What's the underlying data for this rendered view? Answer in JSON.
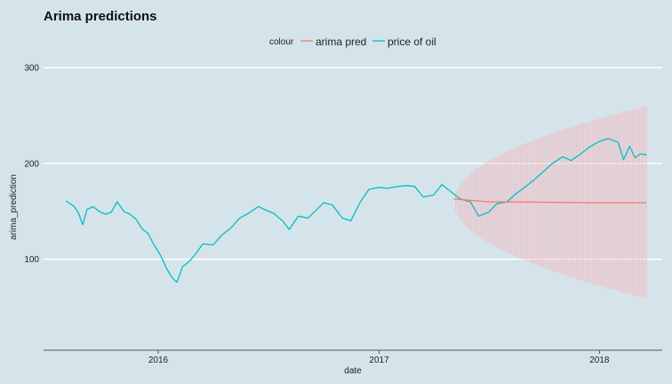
{
  "chart_data": {
    "type": "line",
    "title": "Arima predictions",
    "xlabel": "date",
    "ylabel": "arima_prediction",
    "legend": {
      "title": "colour",
      "position": "top",
      "entries": [
        {
          "label": "arima pred",
          "color": "#f8766d"
        },
        {
          "label": "price of oil",
          "color": "#00bfc4"
        }
      ]
    },
    "x_ticks": [
      "2016",
      "2017",
      "2018"
    ],
    "x_tick_values": [
      "2016-01-01",
      "2017-01-01",
      "2018-01-01"
    ],
    "y_ticks": [
      100,
      200,
      300
    ],
    "ylim": [
      5,
      315
    ],
    "xlim": [
      "2015-06-25",
      "2018-04-15"
    ],
    "grid": {
      "major_y": true,
      "major_x": false
    },
    "series": [
      {
        "name": "price of oil",
        "color": "#00bfc4",
        "points": [
          [
            "2015-08-01",
            161
          ],
          [
            "2015-08-08",
            158
          ],
          [
            "2015-08-15",
            155
          ],
          [
            "2015-08-22",
            148
          ],
          [
            "2015-08-29",
            136
          ],
          [
            "2015-09-05",
            152
          ],
          [
            "2015-09-15",
            155
          ],
          [
            "2015-09-25",
            150
          ],
          [
            "2015-10-05",
            147
          ],
          [
            "2015-10-15",
            149
          ],
          [
            "2015-10-25",
            160
          ],
          [
            "2015-11-05",
            150
          ],
          [
            "2015-11-15",
            147
          ],
          [
            "2015-11-25",
            142
          ],
          [
            "2015-12-05",
            132
          ],
          [
            "2015-12-15",
            127
          ],
          [
            "2015-12-25",
            115
          ],
          [
            "2016-01-05",
            104
          ],
          [
            "2016-01-15",
            90
          ],
          [
            "2016-01-25",
            80
          ],
          [
            "2016-02-01",
            76
          ],
          [
            "2016-02-10",
            92
          ],
          [
            "2016-02-20",
            97
          ],
          [
            "2016-03-01",
            104
          ],
          [
            "2016-03-15",
            116
          ],
          [
            "2016-04-01",
            115
          ],
          [
            "2016-04-15",
            125
          ],
          [
            "2016-05-01",
            133
          ],
          [
            "2016-05-15",
            143
          ],
          [
            "2016-06-01",
            149
          ],
          [
            "2016-06-15",
            155
          ],
          [
            "2016-06-25",
            152
          ],
          [
            "2016-07-10",
            148
          ],
          [
            "2016-07-25",
            140
          ],
          [
            "2016-08-05",
            131
          ],
          [
            "2016-08-20",
            145
          ],
          [
            "2016-09-05",
            143
          ],
          [
            "2016-09-20",
            152
          ],
          [
            "2016-10-01",
            159
          ],
          [
            "2016-10-15",
            157
          ],
          [
            "2016-11-01",
            143
          ],
          [
            "2016-11-15",
            140
          ],
          [
            "2016-12-01",
            160
          ],
          [
            "2016-12-15",
            173
          ],
          [
            "2017-01-01",
            175
          ],
          [
            "2017-01-15",
            174
          ],
          [
            "2017-02-01",
            176
          ],
          [
            "2017-02-15",
            177
          ],
          [
            "2017-03-01",
            176
          ],
          [
            "2017-03-15",
            165
          ],
          [
            "2017-04-01",
            167
          ],
          [
            "2017-04-15",
            178
          ],
          [
            "2017-05-01",
            170
          ],
          [
            "2017-05-15",
            163
          ],
          [
            "2017-06-01",
            160
          ],
          [
            "2017-06-15",
            145
          ],
          [
            "2017-07-01",
            149
          ],
          [
            "2017-07-15",
            158
          ],
          [
            "2017-08-01",
            160
          ],
          [
            "2017-08-15",
            168
          ],
          [
            "2017-09-01",
            176
          ],
          [
            "2017-09-15",
            183
          ],
          [
            "2017-10-01",
            192
          ],
          [
            "2017-10-15",
            200
          ],
          [
            "2017-11-01",
            207
          ],
          [
            "2017-11-15",
            203
          ],
          [
            "2017-12-01",
            210
          ],
          [
            "2017-12-15",
            217
          ],
          [
            "2018-01-01",
            223
          ],
          [
            "2018-01-15",
            226
          ],
          [
            "2018-02-01",
            222
          ],
          [
            "2018-02-10",
            204
          ],
          [
            "2018-02-20",
            218
          ],
          [
            "2018-03-01",
            206
          ],
          [
            "2018-03-10",
            210
          ],
          [
            "2018-03-20",
            209
          ]
        ]
      },
      {
        "name": "arima pred",
        "color": "#f8766d",
        "points": [
          [
            "2017-05-05",
            163
          ],
          [
            "2017-07-01",
            160
          ],
          [
            "2017-10-01",
            159.5
          ],
          [
            "2018-01-01",
            159
          ],
          [
            "2018-03-20",
            159
          ]
        ]
      }
    ],
    "prediction_interval": {
      "color": "#f1b8bd",
      "start": "2017-05-05",
      "end": "2018-03-20",
      "center": 160,
      "lower_start": 160,
      "upper_start": 160,
      "lower_end": 59,
      "upper_end": 260
    }
  }
}
